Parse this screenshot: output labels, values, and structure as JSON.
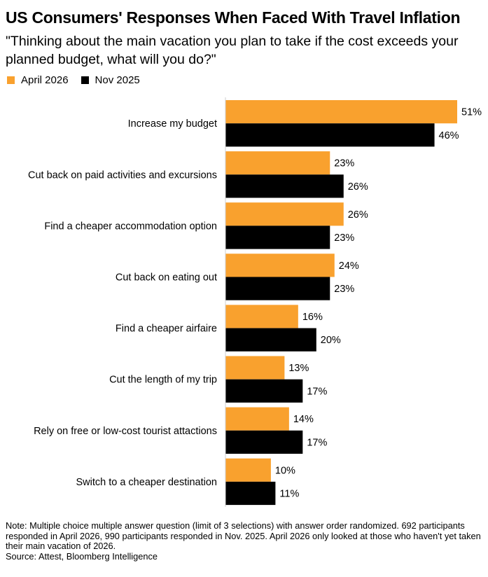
{
  "chart_data": {
    "type": "bar",
    "orientation": "horizontal",
    "title": "US Consumers' Responses When Faced With Travel Inflation",
    "subtitle": "\"Thinking about the main vacation you plan to take if the cost exceeds your planned budget, what will you do?\"",
    "categories": [
      "Increase my budget",
      "Cut back on paid activities and excursions",
      "Find a cheaper accommodation option",
      "Cut back on eating out",
      "Find a cheaper airfaire",
      "Cut the length of my trip",
      "Rely on free or low-cost tourist attactions",
      "Switch to a cheaper destination"
    ],
    "series": [
      {
        "name": "April 2026",
        "color": "#F9A12E",
        "values": [
          51,
          23,
          26,
          24,
          16,
          13,
          14,
          10
        ]
      },
      {
        "name": "Nov 2025",
        "color": "#000000",
        "values": [
          46,
          26,
          23,
          23,
          20,
          17,
          17,
          11
        ]
      }
    ],
    "value_suffix": "%",
    "xlim": [
      0,
      51
    ],
    "grid": false,
    "legend": "top-left"
  },
  "note": "Note: Multiple choice multiple answer question (limit of 3 selections) with answer order randomized. 692 participants responded in April 2026, 990 participants responded in Nov. 2025. April 2026 only looked at those who haven't yet taken their main vacation of 2026.\nSource: Attest, Bloomberg Intelligence"
}
